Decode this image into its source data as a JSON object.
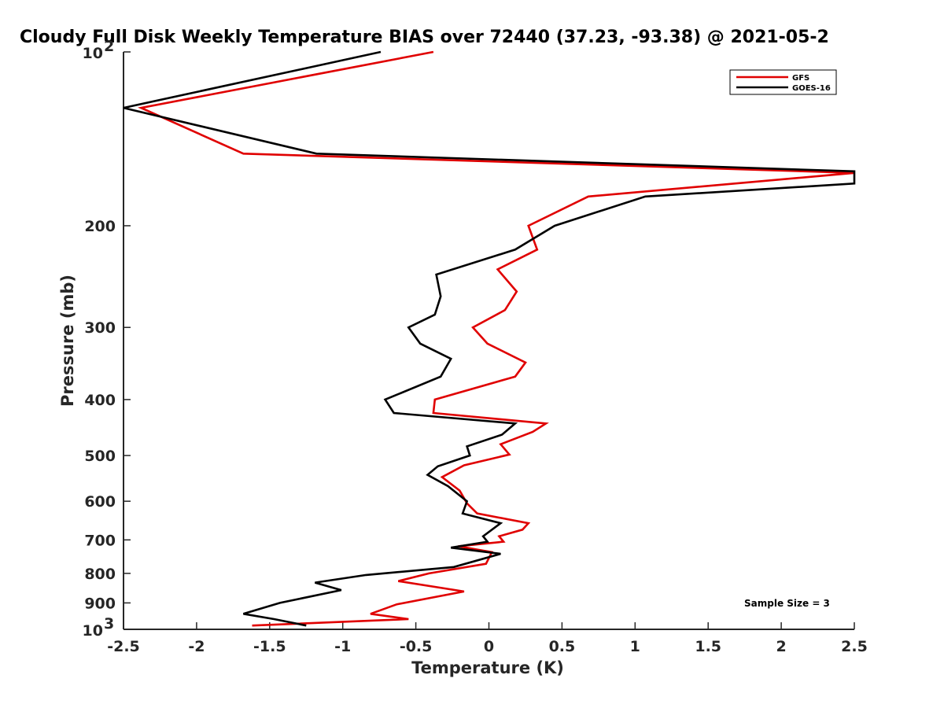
{
  "chart_data": {
    "type": "line",
    "title": "Cloudy Full Disk Weekly Temperature BIAS over 72440 (37.23, -93.38) @ 2021-05-2",
    "xlabel": "Temperature (K)",
    "ylabel": "Pressure (mb)",
    "xlim": [
      -2.5,
      2.5
    ],
    "ylim": [
      1000,
      100
    ],
    "y_scale": "log",
    "y_reversed": true,
    "grid": false,
    "legend_position": "top-right",
    "x_ticks": [
      {
        "v": -2.5,
        "label": "-2.5"
      },
      {
        "v": -2,
        "label": "-2"
      },
      {
        "v": -1.5,
        "label": "-1.5"
      },
      {
        "v": -1,
        "label": "-1"
      },
      {
        "v": -0.5,
        "label": "-0.5"
      },
      {
        "v": 0,
        "label": "0"
      },
      {
        "v": 0.5,
        "label": "0.5"
      },
      {
        "v": 1,
        "label": "1"
      },
      {
        "v": 1.5,
        "label": "1.5"
      },
      {
        "v": 2,
        "label": "2"
      },
      {
        "v": 2.5,
        "label": "2.5"
      }
    ],
    "y_ticks": [
      {
        "v": 100,
        "base": "10",
        "exp": "2"
      },
      {
        "v": 200,
        "label": "200"
      },
      {
        "v": 300,
        "label": "300"
      },
      {
        "v": 400,
        "label": "400"
      },
      {
        "v": 500,
        "label": "500"
      },
      {
        "v": 600,
        "label": "600"
      },
      {
        "v": 700,
        "label": "700"
      },
      {
        "v": 800,
        "label": "800"
      },
      {
        "v": 900,
        "label": "900"
      },
      {
        "v": 1000,
        "base": "10",
        "exp": "3"
      }
    ],
    "annotation": "Sample Size = 3",
    "series": [
      {
        "name": "GFS",
        "color": "#e00000",
        "points": [
          [
            -0.38,
            100
          ],
          [
            -2.38,
            125
          ],
          [
            -1.68,
            150
          ],
          [
            2.5,
            162
          ],
          [
            0.68,
            178
          ],
          [
            0.27,
            200
          ],
          [
            0.33,
            220
          ],
          [
            0.06,
            238
          ],
          [
            0.19,
            260
          ],
          [
            0.11,
            280
          ],
          [
            -0.11,
            300
          ],
          [
            -0.01,
            320
          ],
          [
            0.25,
            345
          ],
          [
            0.18,
            365
          ],
          [
            -0.37,
            400
          ],
          [
            -0.38,
            422
          ],
          [
            0.39,
            440
          ],
          [
            0.3,
            455
          ],
          [
            0.08,
            478
          ],
          [
            0.14,
            498
          ],
          [
            -0.17,
            520
          ],
          [
            -0.32,
            545
          ],
          [
            -0.2,
            575
          ],
          [
            -0.15,
            605
          ],
          [
            -0.08,
            630
          ],
          [
            0.27,
            655
          ],
          [
            0.23,
            672
          ],
          [
            0.07,
            690
          ],
          [
            0.1,
            705
          ],
          [
            -0.21,
            718
          ],
          [
            0.02,
            735
          ],
          [
            -0.02,
            770
          ],
          [
            -0.41,
            800
          ],
          [
            -0.62,
            825
          ],
          [
            -0.17,
            860
          ],
          [
            -0.63,
            905
          ],
          [
            -0.81,
            940
          ],
          [
            -0.55,
            960
          ],
          [
            -1.62,
            985
          ]
        ]
      },
      {
        "name": "GOES-16",
        "color": "#000000",
        "points": [
          [
            -0.74,
            100
          ],
          [
            -2.5,
            125
          ],
          [
            -1.18,
            150
          ],
          [
            2.5,
            161
          ],
          [
            2.5,
            169
          ],
          [
            1.07,
            178
          ],
          [
            0.45,
            200
          ],
          [
            0.18,
            220
          ],
          [
            -0.36,
            243
          ],
          [
            -0.33,
            265
          ],
          [
            -0.37,
            285
          ],
          [
            -0.55,
            300
          ],
          [
            -0.47,
            320
          ],
          [
            -0.26,
            340
          ],
          [
            -0.33,
            365
          ],
          [
            -0.71,
            400
          ],
          [
            -0.65,
            422
          ],
          [
            0.18,
            440
          ],
          [
            0.09,
            460
          ],
          [
            -0.15,
            482
          ],
          [
            -0.13,
            500
          ],
          [
            -0.35,
            522
          ],
          [
            -0.42,
            540
          ],
          [
            -0.28,
            565
          ],
          [
            -0.15,
            600
          ],
          [
            -0.18,
            630
          ],
          [
            0.08,
            655
          ],
          [
            -0.04,
            690
          ],
          [
            -0.01,
            705
          ],
          [
            -0.26,
            722
          ],
          [
            0.08,
            740
          ],
          [
            -0.24,
            780
          ],
          [
            -0.84,
            805
          ],
          [
            -1.19,
            830
          ],
          [
            -1.01,
            855
          ],
          [
            -1.43,
            900
          ],
          [
            -1.68,
            940
          ],
          [
            -1.47,
            960
          ],
          [
            -1.25,
            985
          ]
        ]
      }
    ]
  }
}
